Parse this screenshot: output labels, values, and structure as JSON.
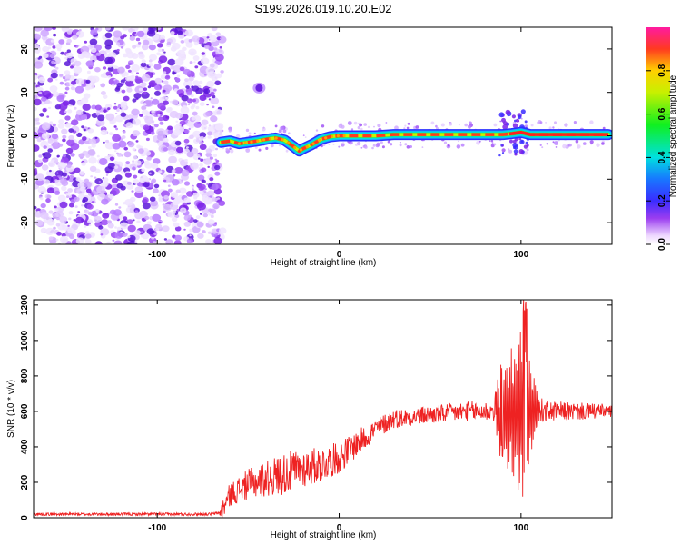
{
  "title": "S199.2026.019.10.20.E02",
  "chart_data": [
    {
      "type": "heatmap",
      "name": "spectrogram",
      "xlabel": "Height of straight line (km)",
      "ylabel": "Frequency (Hz)",
      "xlim": [
        -168,
        150
      ],
      "ylim": [
        -25,
        25
      ],
      "xticks": [
        -100,
        0,
        100
      ],
      "yticks": [
        -20,
        -10,
        0,
        10,
        20
      ],
      "noise_region_x": [
        -168,
        -65
      ],
      "isolated_blob": {
        "x": -44,
        "y": 11
      },
      "signal_trace": {
        "x": [
          -65,
          -60,
          -55,
          -50,
          -45,
          -40,
          -35,
          -30,
          -25,
          -22,
          -20,
          -15,
          -10,
          -5,
          0,
          5,
          10,
          20,
          30,
          40,
          50,
          60,
          70,
          80,
          90,
          95,
          100,
          105,
          110,
          120,
          130,
          140,
          148
        ],
        "y": [
          -1.5,
          -1.2,
          -1.8,
          -1.5,
          -1.2,
          -0.8,
          -0.5,
          -1.0,
          -2.5,
          -3.5,
          -3.0,
          -2.0,
          -0.8,
          -0.2,
          0,
          0,
          0,
          0,
          0.3,
          0.3,
          0.3,
          0.3,
          0.3,
          0.3,
          0.3,
          0.5,
          0.8,
          0.3,
          0.3,
          0.3,
          0.3,
          0.3,
          0.3
        ]
      },
      "colorbar": {
        "label": "Normalized spectral amplitude",
        "ticks": [
          0.0,
          0.2,
          0.4,
          0.6,
          0.8
        ],
        "range": [
          0,
          1
        ]
      }
    },
    {
      "type": "line",
      "name": "snr",
      "xlabel": "Height of straight line (km)",
      "ylabel": "SNR (10 * v/v)",
      "xlim": [
        -168,
        150
      ],
      "ylim": [
        0,
        1230
      ],
      "xticks": [
        -100,
        0,
        100
      ],
      "yticks": [
        0,
        200,
        400,
        600,
        800,
        1000,
        1200
      ],
      "color": "#ee2222",
      "trend": {
        "x": [
          -168,
          -70,
          -65,
          -60,
          -50,
          -40,
          -30,
          -20,
          -10,
          0,
          10,
          20,
          30,
          50,
          70,
          90,
          100,
          110,
          130,
          150
        ],
        "y": [
          20,
          20,
          30,
          130,
          190,
          220,
          250,
          280,
          300,
          340,
          420,
          500,
          560,
          580,
          600,
          600,
          600,
          600,
          600,
          600
        ]
      },
      "noise_amplitude": {
        "x": [
          -168,
          -66,
          -64,
          -30,
          0,
          20,
          40,
          85,
          88,
          96,
          100,
          104,
          108,
          112,
          150
        ],
        "y": [
          8,
          8,
          60,
          120,
          90,
          60,
          50,
          60,
          250,
          420,
          550,
          360,
          180,
          60,
          40
        ]
      },
      "series": [
        {
          "name": "SNR",
          "color": "#ee2222"
        }
      ]
    }
  ]
}
